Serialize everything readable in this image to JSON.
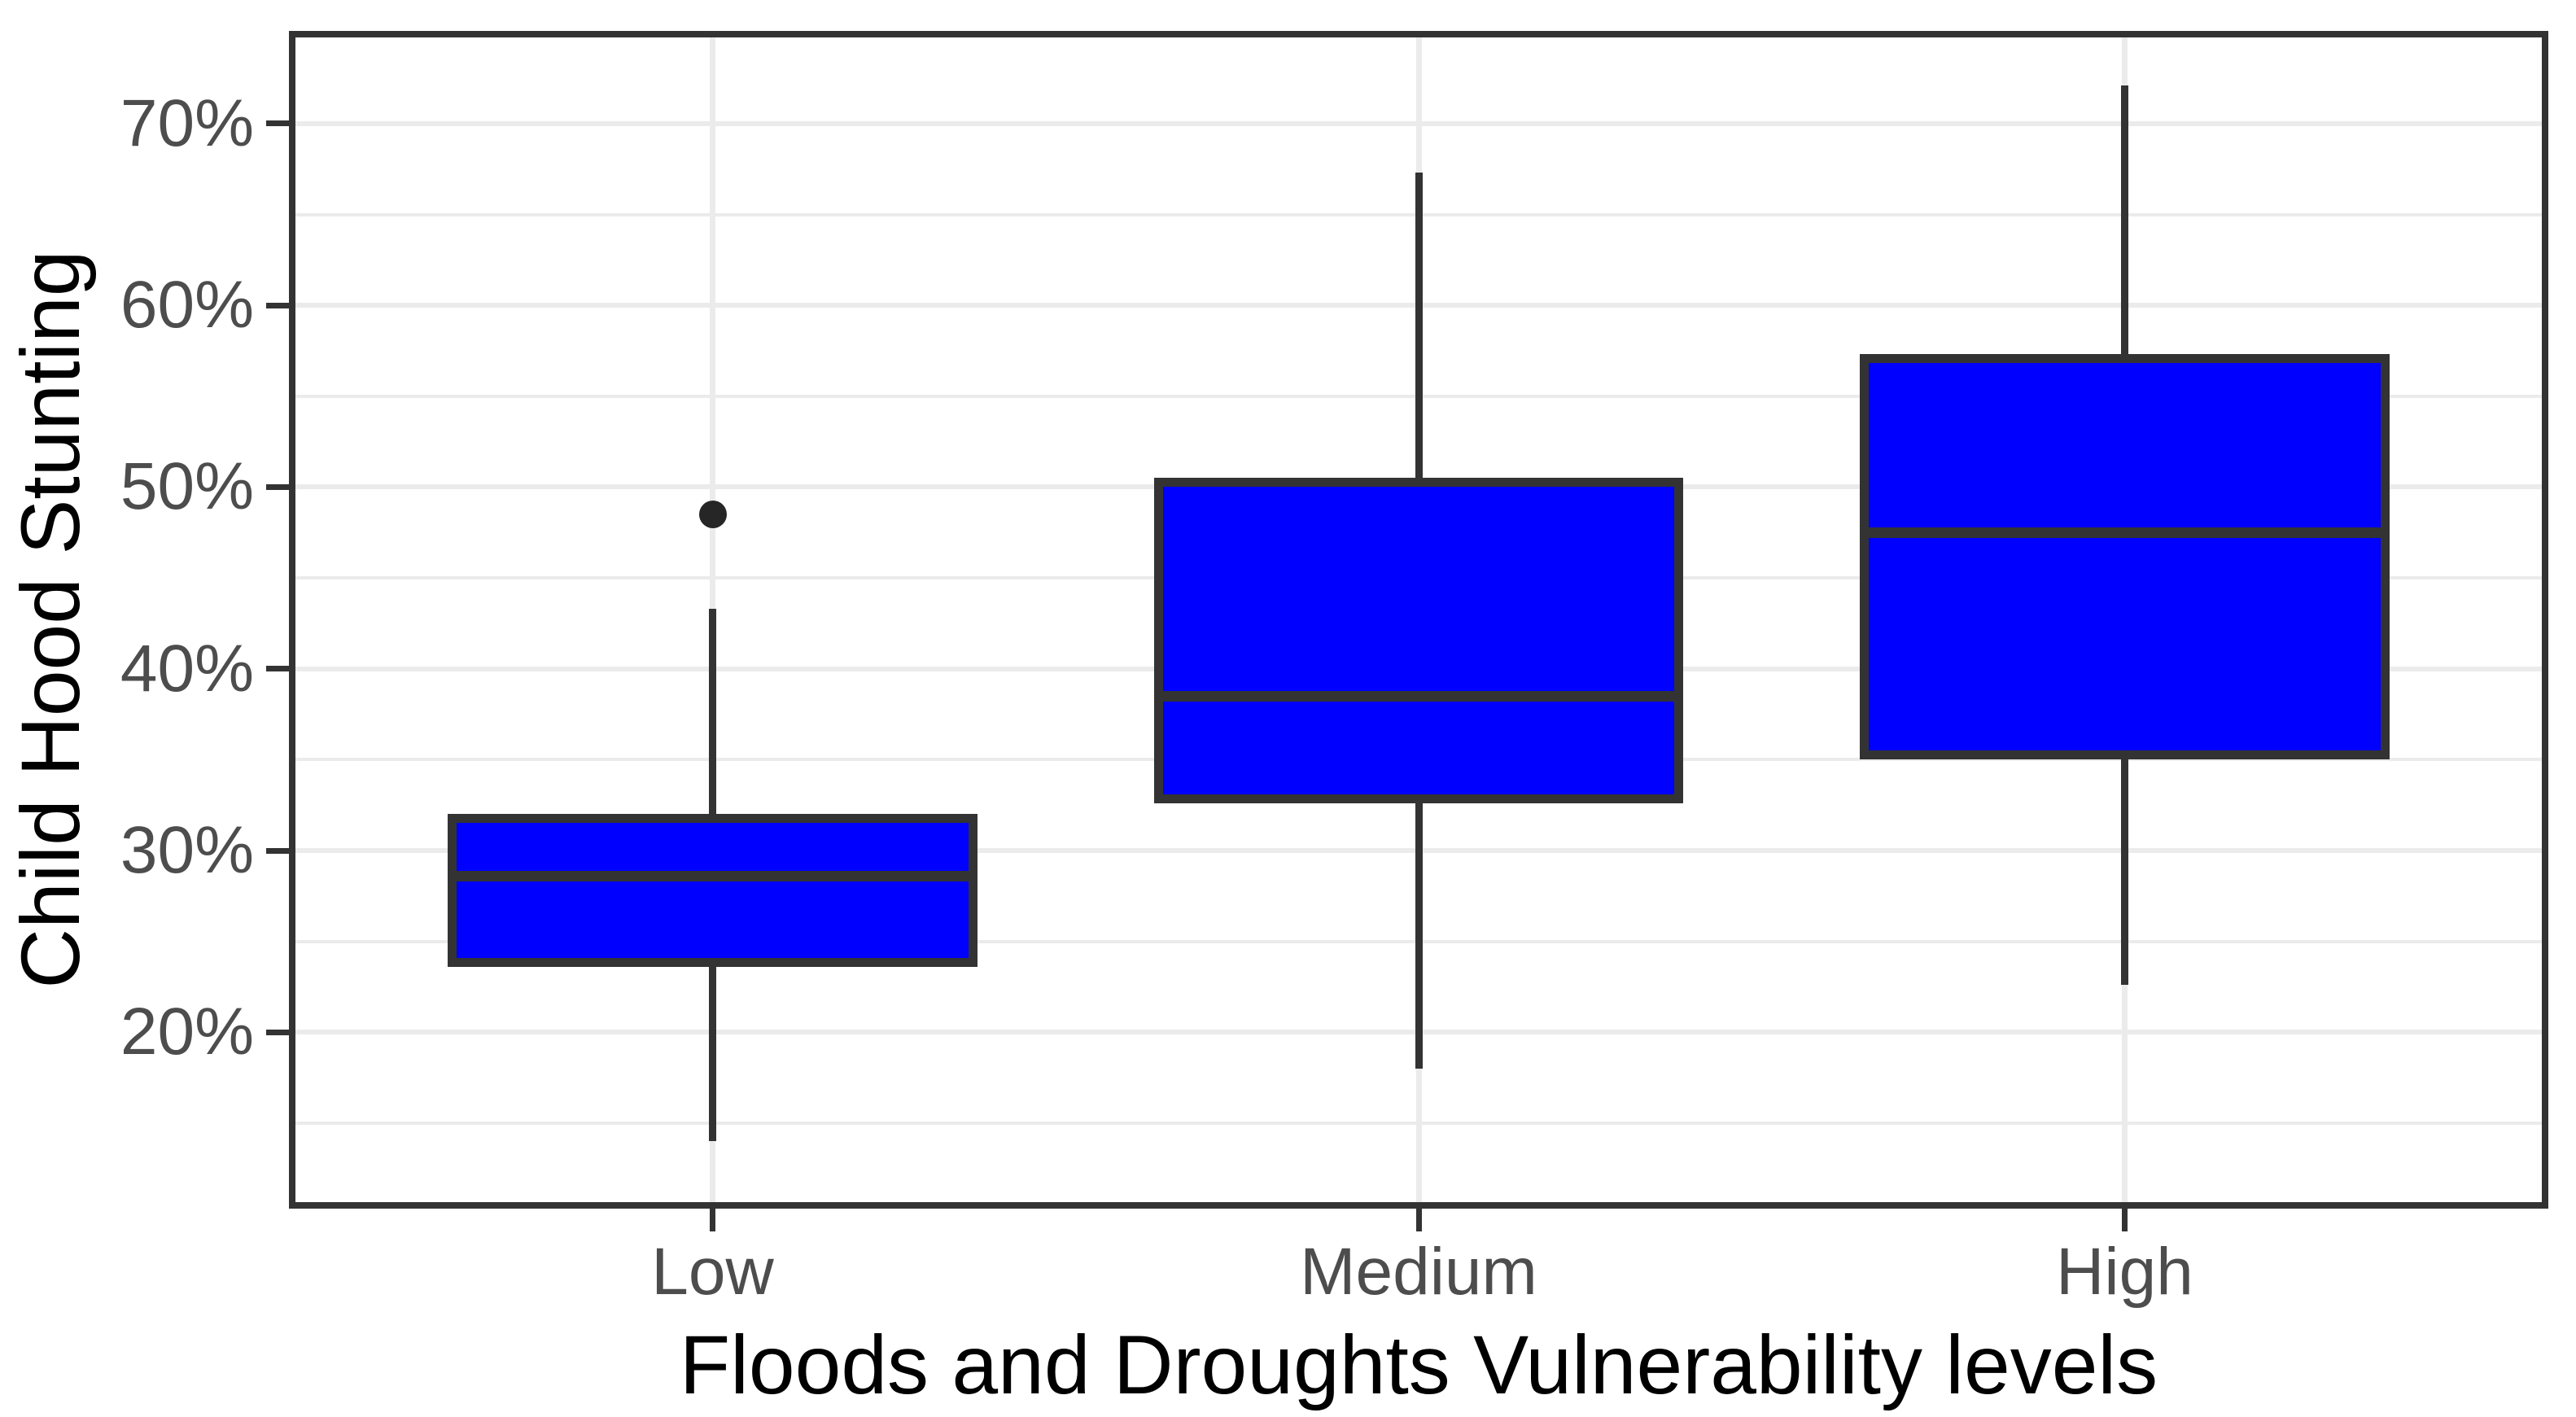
{
  "chart_data": {
    "type": "boxplot",
    "title": "",
    "xlabel": "Floods and Droughts Vulnerability levels",
    "ylabel": "Child Hood Stunting",
    "categories": [
      "Low",
      "Medium",
      "High"
    ],
    "y_ticks": [
      70,
      60,
      50,
      40,
      30,
      20
    ],
    "y_tick_suffix": "%",
    "y_minor_step": 5,
    "ylim": [
      10.3,
      75.1
    ],
    "grid": "horizontal gray lines every 5%, vertical gray line at each category center",
    "legend_position": "none",
    "series": [
      {
        "category": "Low",
        "whisker_low": 14.0,
        "q1": 23.6,
        "median": 28.6,
        "q3": 32.0,
        "whisker_high": 43.3,
        "outliers": [
          48.5
        ]
      },
      {
        "category": "Medium",
        "whisker_low": 18.0,
        "q1": 32.6,
        "median": 38.5,
        "q3": 50.5,
        "whisker_high": 67.3,
        "outliers": []
      },
      {
        "category": "High",
        "whisker_low": 22.6,
        "q1": 35.0,
        "median": 47.5,
        "q3": 57.3,
        "whisker_high": 72.1,
        "outliers": []
      }
    ],
    "colors": {
      "box_fill": "#0000ff",
      "box_stroke": "#333333",
      "median": "#333333",
      "whisker": "#333333",
      "outlier": "#262626",
      "gridline": "#ebebeb",
      "panel_border": "#333333",
      "tick_mark": "#333333",
      "tick_label": "#4d4d4d",
      "axis_title": "#000000",
      "background": "#ffffff"
    }
  }
}
